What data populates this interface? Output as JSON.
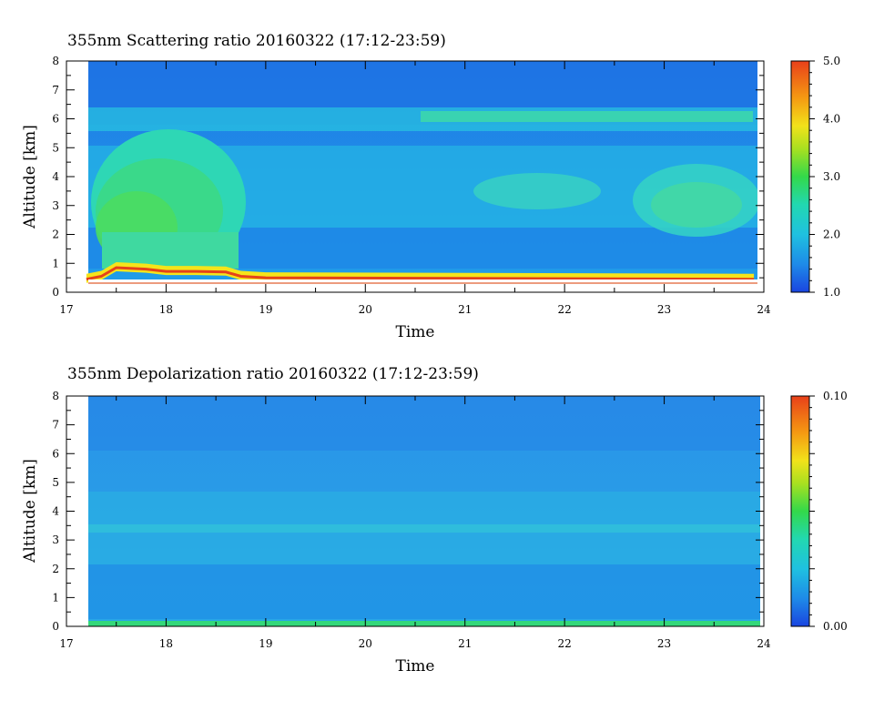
{
  "chart_data": [
    {
      "type": "heatmap",
      "title": "355nm Scattering ratio  20160322 (17:12-23:59)",
      "xlabel": "Time",
      "ylabel": "Altitude [km]",
      "xlim": [
        17,
        24
      ],
      "ylim": [
        0,
        8
      ],
      "x_ticks": [
        "17",
        "18",
        "19",
        "20",
        "21",
        "22",
        "23",
        "24"
      ],
      "y_ticks": [
        "0",
        "1",
        "2",
        "3",
        "4",
        "5",
        "6",
        "7",
        "8"
      ],
      "data_time_range": [
        17.2,
        23.98
      ],
      "colorbar": {
        "min": 1.0,
        "max": 5.0,
        "labels": [
          "1.0",
          "2.0",
          "3.0",
          "4.0",
          "5.0"
        ],
        "colormap": "rainbow"
      },
      "features": [
        {
          "name": "boundary layer top (ratio ~5)",
          "x": [
            17.2,
            17.35,
            17.5,
            17.8,
            18.0,
            18.3,
            18.6,
            18.75,
            19.0,
            23.9
          ],
          "y": [
            0.45,
            0.55,
            0.85,
            0.8,
            0.72,
            0.72,
            0.7,
            0.55,
            0.5,
            0.45
          ]
        },
        {
          "name": "aerosol layer (ratio ~3)",
          "x_range": [
            17.3,
            18.75
          ],
          "y_range": [
            1.0,
            4.5
          ]
        },
        {
          "name": "aerosol layer (ratio ~2.5)",
          "x_range": [
            22.8,
            23.7
          ],
          "y_range": [
            2.2,
            4.5
          ]
        },
        {
          "name": "thin layer (ratio ~2.5)",
          "x_range": [
            20.8,
            23.8
          ],
          "y_range": [
            5.9,
            6.2
          ]
        }
      ]
    },
    {
      "type": "heatmap",
      "title": "355nm Depolarization ratio  20160322 (17:12-23:59)",
      "xlabel": "Time",
      "ylabel": "Altitude [km]",
      "xlim": [
        17,
        24
      ],
      "ylim": [
        0,
        8
      ],
      "x_ticks": [
        "17",
        "18",
        "19",
        "20",
        "21",
        "22",
        "23",
        "24"
      ],
      "y_ticks": [
        "0",
        "1",
        "2",
        "3",
        "4",
        "5",
        "6",
        "7",
        "8"
      ],
      "data_time_range": [
        17.2,
        23.98
      ],
      "colorbar": {
        "min": 0.0,
        "max": 0.1,
        "labels": [
          "0.00",
          "0.10"
        ],
        "colormap": "rainbow"
      },
      "features": [
        {
          "name": "near-surface layer (ratio ~0.04)",
          "x_range": [
            17.2,
            23.98
          ],
          "y_range": [
            0.0,
            0.15
          ]
        },
        {
          "name": "layer (ratio ~0.03)",
          "x_range": [
            17.2,
            23.98
          ],
          "y_range": [
            3.2,
            3.5
          ]
        }
      ]
    }
  ]
}
